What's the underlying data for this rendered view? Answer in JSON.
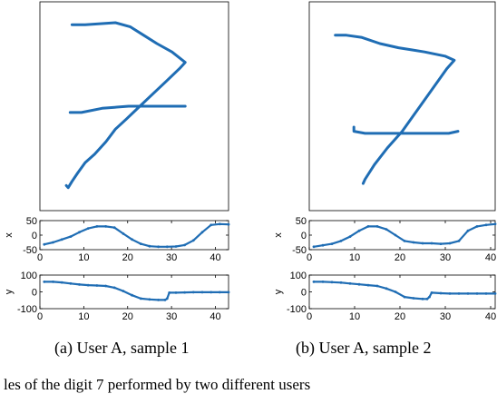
{
  "captions": [
    "(a)  User A, sample 1",
    "(b)  User A, sample 2"
  ],
  "partial_caption": "les of the digit 7 performed by two different users",
  "colors": {
    "stroke": "#1f6db4",
    "axis": "#000000",
    "background": "#ffffff"
  },
  "chart_data": [
    {
      "type": "line",
      "panel": "a-trajectory",
      "xlim": [
        0,
        1
      ],
      "ylim": [
        0,
        1
      ],
      "ticks_shown": false,
      "series": [
        {
          "x": [
            0.17,
            0.19,
            0.24,
            0.4,
            0.48,
            0.55,
            0.62,
            0.7,
            0.77,
            0.74,
            0.67,
            0.6,
            0.53,
            0.46,
            0.4,
            0.35,
            0.29,
            0.24,
            0.2,
            0.17,
            0.15,
            0.14
          ],
          "y": [
            0.89,
            0.89,
            0.89,
            0.9,
            0.88,
            0.84,
            0.8,
            0.76,
            0.71,
            0.68,
            0.62,
            0.56,
            0.5,
            0.44,
            0.39,
            0.33,
            0.27,
            0.23,
            0.18,
            0.14,
            0.11,
            0.12
          ]
        },
        {
          "x": [
            0.16,
            0.22,
            0.33,
            0.47,
            0.62,
            0.77
          ],
          "y": [
            0.47,
            0.47,
            0.49,
            0.5,
            0.5,
            0.5
          ]
        }
      ]
    },
    {
      "type": "line",
      "panel": "b-trajectory",
      "xlim": [
        0,
        1
      ],
      "ylim": [
        0,
        1
      ],
      "ticks_shown": false,
      "series": [
        {
          "x": [
            0.14,
            0.2,
            0.28,
            0.38,
            0.48,
            0.55,
            0.62,
            0.73,
            0.78,
            0.74,
            0.66,
            0.58,
            0.5,
            0.42,
            0.35,
            0.3,
            0.29
          ],
          "y": [
            0.84,
            0.84,
            0.83,
            0.8,
            0.78,
            0.77,
            0.76,
            0.74,
            0.72,
            0.68,
            0.58,
            0.48,
            0.38,
            0.3,
            0.22,
            0.15,
            0.13
          ]
        },
        {
          "x": [
            0.24,
            0.24,
            0.3,
            0.4,
            0.55,
            0.75,
            0.8
          ],
          "y": [
            0.4,
            0.38,
            0.37,
            0.37,
            0.37,
            0.37,
            0.38
          ]
        }
      ]
    },
    {
      "type": "line",
      "panel": "a-x",
      "ylabel": "x",
      "xlim": [
        0,
        43
      ],
      "ylim": [
        -50,
        50
      ],
      "xticks": [
        0,
        10,
        20,
        30,
        40
      ],
      "yticks": [
        -50,
        0,
        50
      ],
      "series": [
        {
          "x": [
            1,
            3,
            5,
            7,
            9,
            11,
            13,
            15,
            17,
            19,
            21,
            23,
            25,
            27,
            29,
            31,
            33,
            35,
            37,
            39,
            41,
            43
          ],
          "y": [
            -32,
            -25,
            -15,
            -5,
            10,
            23,
            30,
            30,
            26,
            5,
            -15,
            -30,
            -38,
            -40,
            -40,
            -39,
            -34,
            -18,
            10,
            35,
            38,
            37
          ]
        }
      ]
    },
    {
      "type": "line",
      "panel": "a-y",
      "ylabel": "y",
      "xlim": [
        0,
        43
      ],
      "ylim": [
        -100,
        100
      ],
      "xticks": [
        0,
        10,
        20,
        30,
        40
      ],
      "yticks": [
        -100,
        0,
        100
      ],
      "series": [
        {
          "x": [
            1,
            3,
            5,
            7,
            9,
            11,
            13,
            15,
            17,
            19,
            21,
            23,
            25,
            27,
            28.5,
            29,
            29.5,
            31,
            33,
            35,
            37,
            39,
            41,
            43
          ],
          "y": [
            60,
            60,
            56,
            50,
            44,
            40,
            38,
            35,
            25,
            5,
            -20,
            -40,
            -45,
            -48,
            -48,
            -40,
            -5,
            -5,
            -3,
            -2,
            -2,
            -2,
            -2,
            -2
          ]
        }
      ]
    },
    {
      "type": "line",
      "panel": "b-x",
      "ylabel": "x",
      "xlim": [
        0,
        41
      ],
      "ylim": [
        -50,
        50
      ],
      "xticks": [
        0,
        10,
        20,
        30,
        40
      ],
      "yticks": [
        -50,
        0,
        50
      ],
      "series": [
        {
          "x": [
            1,
            3,
            5,
            7,
            9,
            11,
            13,
            15,
            17,
            19,
            21,
            23,
            25,
            27,
            29,
            31,
            33,
            35,
            37,
            39,
            41
          ],
          "y": [
            -40,
            -35,
            -30,
            -20,
            -5,
            15,
            30,
            30,
            20,
            0,
            -20,
            -25,
            -28,
            -28,
            -30,
            -28,
            -20,
            15,
            30,
            35,
            38
          ]
        }
      ]
    },
    {
      "type": "line",
      "panel": "b-y",
      "ylabel": "y",
      "xlim": [
        0,
        41
      ],
      "ylim": [
        -100,
        100
      ],
      "xticks": [
        0,
        10,
        20,
        30,
        40
      ],
      "yticks": [
        -100,
        0,
        100
      ],
      "series": [
        {
          "x": [
            1,
            3,
            5,
            7,
            9,
            11,
            13,
            15,
            17,
            19,
            21,
            23,
            25,
            26,
            26.5,
            27,
            29,
            31,
            33,
            35,
            37,
            39,
            41
          ],
          "y": [
            60,
            60,
            58,
            55,
            50,
            45,
            40,
            35,
            20,
            0,
            -30,
            -38,
            -42,
            -42,
            -30,
            -5,
            -8,
            -10,
            -10,
            -10,
            -10,
            -10,
            -10
          ]
        }
      ]
    }
  ]
}
